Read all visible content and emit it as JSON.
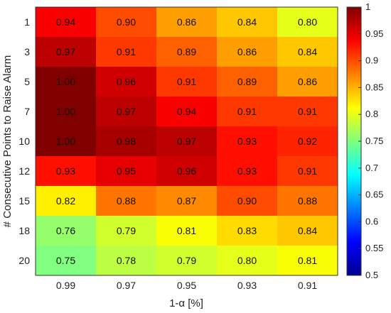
{
  "chart_data": {
    "type": "heatmap",
    "title": "",
    "xlabel": "1-α [%]",
    "ylabel": "# Consecutive Points to Raise Alarm",
    "x_categories": [
      "0.99",
      "0.97",
      "0.95",
      "0.93",
      "0.91"
    ],
    "y_categories": [
      "1",
      "3",
      "5",
      "7",
      "10",
      "12",
      "15",
      "18",
      "20"
    ],
    "values": [
      [
        0.94,
        0.9,
        0.86,
        0.84,
        0.8
      ],
      [
        0.97,
        0.91,
        0.89,
        0.86,
        0.84
      ],
      [
        1.0,
        0.96,
        0.91,
        0.89,
        0.86
      ],
      [
        1.0,
        0.97,
        0.94,
        0.91,
        0.91
      ],
      [
        1.0,
        0.98,
        0.97,
        0.93,
        0.92
      ],
      [
        0.93,
        0.95,
        0.96,
        0.93,
        0.91
      ],
      [
        0.82,
        0.88,
        0.87,
        0.9,
        0.88
      ],
      [
        0.76,
        0.79,
        0.81,
        0.83,
        0.84
      ],
      [
        0.75,
        0.78,
        0.79,
        0.8,
        0.81
      ]
    ],
    "value_labels": [
      [
        "0.94",
        "0.90",
        "0.86",
        "0.84",
        "0.80"
      ],
      [
        "0.97",
        "0.91",
        "0.89",
        "0.86",
        "0.84"
      ],
      [
        "1.00",
        "0.96",
        "0.91",
        "0.89",
        "0.86"
      ],
      [
        "1.00",
        "0.97",
        "0.94",
        "0.91",
        "0.91"
      ],
      [
        "1.00",
        "0.98",
        "0.97",
        "0.93",
        "0.92"
      ],
      [
        "0.93",
        "0.95",
        "0.96",
        "0.93",
        "0.91"
      ],
      [
        "0.82",
        "0.88",
        "0.87",
        "0.90",
        "0.88"
      ],
      [
        "0.76",
        "0.79",
        "0.81",
        "0.83",
        "0.84"
      ],
      [
        "0.75",
        "0.78",
        "0.79",
        "0.80",
        "0.81"
      ]
    ],
    "colorbar": {
      "range": [
        0.5,
        1.0
      ],
      "ticks": [
        "0.5",
        "0.55",
        "0.6",
        "0.65",
        "0.7",
        "0.75",
        "0.8",
        "0.85",
        "0.9",
        "0.95",
        "1"
      ],
      "colormap": "jet"
    }
  }
}
